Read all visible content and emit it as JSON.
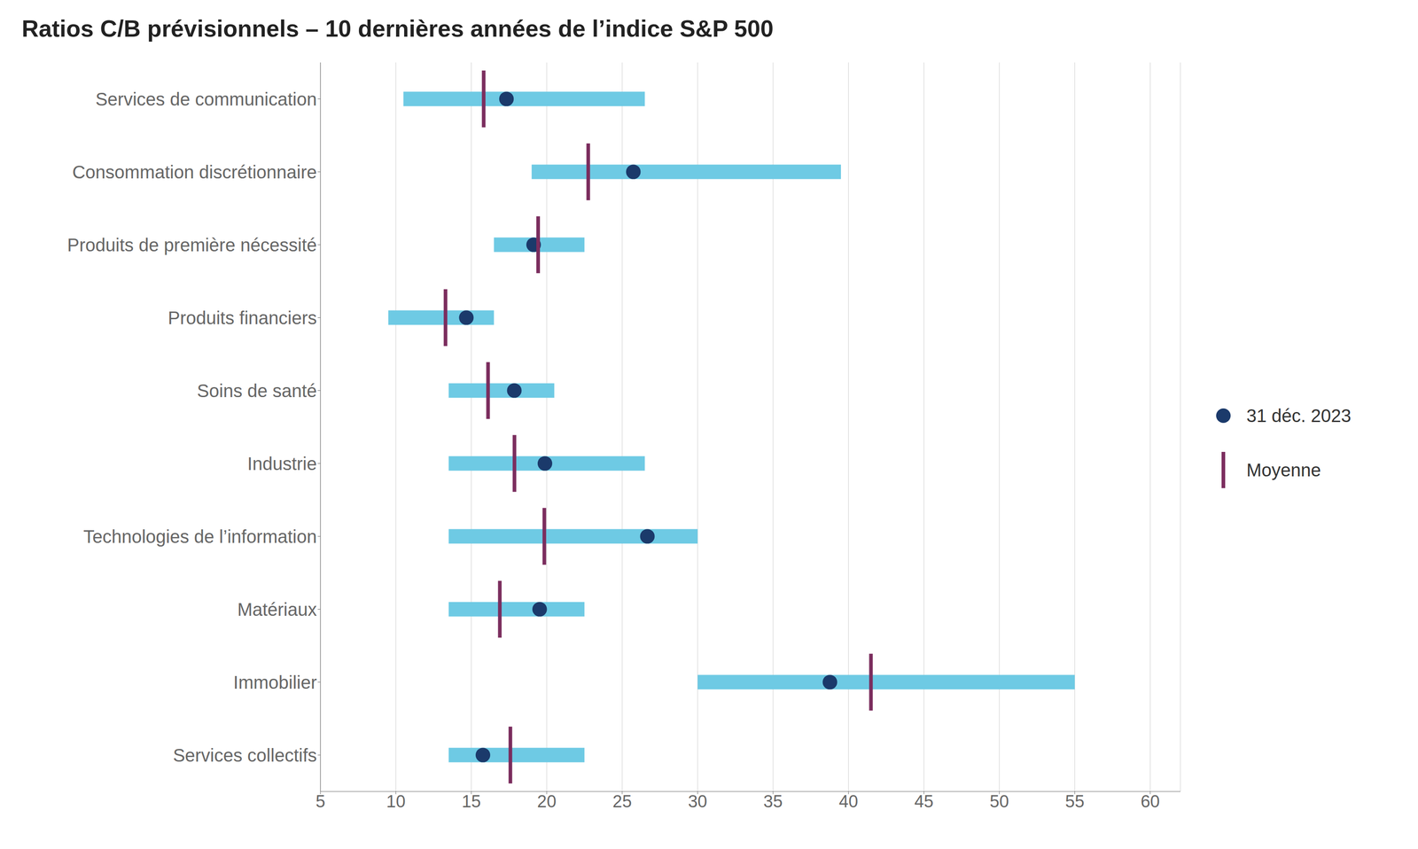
{
  "chart_data": {
    "type": "bar",
    "orientation": "horizontal",
    "title": "Ratios C/B prévisionnels – 10 dernières années de l’indice S&P 500",
    "categories": [
      "Services de communication",
      "Consommation discrétionnaire",
      "Produits de première nécessité",
      "Produits financiers",
      "Soins de santé",
      "Industrie",
      "Technologies de l’information",
      "Matériaux",
      "Immobilier",
      "Services collectifs"
    ],
    "range": {
      "low": [
        10.5,
        19.0,
        16.5,
        9.5,
        13.5,
        13.5,
        13.5,
        13.5,
        30.0,
        13.5
      ],
      "high": [
        26.5,
        39.5,
        22.5,
        16.5,
        20.5,
        26.5,
        30.0,
        22.5,
        55.0,
        22.5
      ],
      "color": "#6ECAE4"
    },
    "series": [
      {
        "name": "31 déc. 2023",
        "type": "scatter",
        "marker": "circle",
        "color": "#1B3A6B",
        "values": [
          17.33,
          25.74,
          19.13,
          14.67,
          17.85,
          19.88,
          26.67,
          19.53,
          38.77,
          15.77
        ]
      },
      {
        "name": "Moyenne",
        "type": "scatter",
        "marker": "vline",
        "color": "#7B2D5E",
        "values": [
          15.82,
          22.75,
          19.43,
          13.29,
          16.11,
          17.86,
          19.84,
          16.89,
          41.49,
          17.59
        ]
      }
    ],
    "xlim": [
      5,
      62
    ],
    "xticks": [
      5,
      10,
      15,
      20,
      25,
      30,
      35,
      40,
      45,
      50,
      55,
      60
    ],
    "grid": true,
    "legend": "right"
  }
}
